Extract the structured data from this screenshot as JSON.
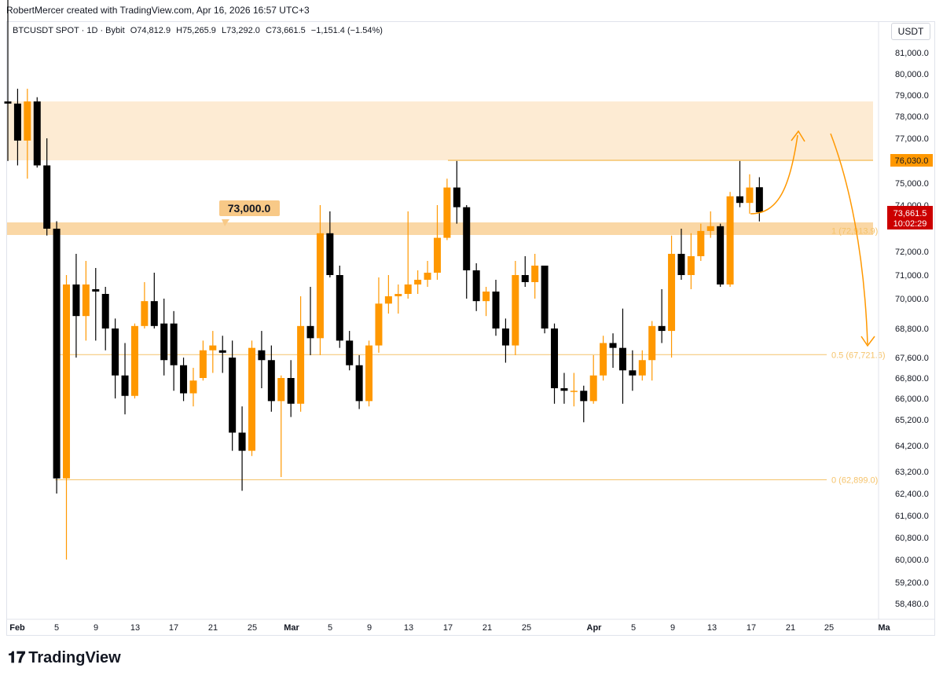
{
  "header": {
    "credit": "RobertMercer created with TradingView.com, Apr 16, 2026 16:57 UTC+3"
  },
  "symbol_line": {
    "symbol": "BTCUSDT SPOT · 1D · Bybit",
    "open": "O74,812.9",
    "high": "H75,265.9",
    "low": "L73,292.0",
    "close": "C73,661.5",
    "change": "−1,151.4 (−1.54%)"
  },
  "price_scale_label": "USDT",
  "colors": {
    "up": "#ff9800",
    "down": "#000000",
    "zone": "#fdebd3",
    "level": "#f8c987",
    "fib": "#f5c36b",
    "current_price_bg": "#cc0000",
    "resistance_tag_bg": "#ff9800"
  },
  "brand": {
    "text": "TradingView",
    "logo_icon": "tradingview-logo-icon"
  },
  "annotations": {
    "level_tag": "73,000.0",
    "resistance_tag": "76,030.0",
    "current_price": "73,661.5",
    "countdown": "10:02:29",
    "fib_1": "1 (72,913.9)",
    "fib_05": "0.5 (67,721.6)",
    "fib_0": "0 (62,899.0)"
  },
  "chart_data": {
    "type": "candlestick",
    "y_axis_ticks": [
      "81,000.0",
      "80,000.0",
      "79,000.0",
      "78,000.0",
      "77,000.0",
      "75,000.0",
      "74,000.0",
      "72,000.0",
      "71,000.0",
      "70,000.0",
      "68,800.0",
      "67,600.0",
      "66,800.0",
      "66,000.0",
      "65,200.0",
      "64,200.0",
      "63,200.0",
      "62,400.0",
      "61,600.0",
      "60,800.0",
      "60,000.0",
      "59,200.0",
      "58,480.0"
    ],
    "x_axis_ticks": [
      "Feb",
      "5",
      "9",
      "13",
      "17",
      "21",
      "25",
      "Mar",
      "5",
      "9",
      "13",
      "17",
      "21",
      "25",
      "Apr",
      "5",
      "9",
      "13",
      "17",
      "21",
      "25",
      "Ma"
    ],
    "resistance_zone": [
      76030,
      78700
    ],
    "support_level": 73000,
    "resistance_level": 76030,
    "fib_levels": [
      {
        "ratio": 1,
        "price": 72913.9
      },
      {
        "ratio": 0.5,
        "price": 67721.6
      },
      {
        "ratio": 0,
        "price": 62899.0
      }
    ],
    "candles": [
      {
        "date": "Jan 31",
        "o": 78700,
        "h": 84000,
        "l": 76000,
        "c": 78600
      },
      {
        "date": "Feb 1",
        "o": 78600,
        "h": 79300,
        "l": 75800,
        "c": 76900
      },
      {
        "date": "Feb 2",
        "o": 76900,
        "h": 79300,
        "l": 75200,
        "c": 78700
      },
      {
        "date": "Feb 3",
        "o": 78700,
        "h": 78900,
        "l": 75700,
        "c": 75800
      },
      {
        "date": "Feb 4",
        "o": 75800,
        "h": 77000,
        "l": 72700,
        "c": 73000
      },
      {
        "date": "Feb 5",
        "o": 73000,
        "h": 73300,
        "l": 62400,
        "c": 62950
      },
      {
        "date": "Feb 6",
        "o": 62950,
        "h": 71000,
        "l": 60000,
        "c": 70600
      },
      {
        "date": "Feb 7",
        "o": 70600,
        "h": 71900,
        "l": 67600,
        "c": 69300
      },
      {
        "date": "Feb 8",
        "o": 69300,
        "h": 71600,
        "l": 68300,
        "c": 70600
      },
      {
        "date": "Feb 9",
        "o": 70400,
        "h": 71300,
        "l": 68300,
        "c": 70300
      },
      {
        "date": "Feb 10",
        "o": 70200,
        "h": 70500,
        "l": 67900,
        "c": 68800
      },
      {
        "date": "Feb 11",
        "o": 68800,
        "h": 69200,
        "l": 66000,
        "c": 66900
      },
      {
        "date": "Feb 12",
        "o": 66900,
        "h": 68200,
        "l": 65400,
        "c": 66100
      },
      {
        "date": "Feb 13",
        "o": 66100,
        "h": 69000,
        "l": 66000,
        "c": 68900
      },
      {
        "date": "Feb 14",
        "o": 68900,
        "h": 70700,
        "l": 68800,
        "c": 69900
      },
      {
        "date": "Feb 15",
        "o": 69900,
        "h": 71100,
        "l": 68800,
        "c": 68900
      },
      {
        "date": "Feb 16",
        "o": 69000,
        "h": 70000,
        "l": 66900,
        "c": 67500
      },
      {
        "date": "Feb 17",
        "o": 69000,
        "h": 69500,
        "l": 66300,
        "c": 67300
      },
      {
        "date": "Feb 18",
        "o": 67300,
        "h": 67600,
        "l": 65900,
        "c": 66200
      },
      {
        "date": "Feb 19",
        "o": 66200,
        "h": 67200,
        "l": 65700,
        "c": 66700
      },
      {
        "date": "Feb 20",
        "o": 66800,
        "h": 68300,
        "l": 66700,
        "c": 67900
      },
      {
        "date": "Feb 21",
        "o": 67900,
        "h": 68700,
        "l": 67000,
        "c": 68100
      },
      {
        "date": "Feb 22",
        "o": 67900,
        "h": 68500,
        "l": 67000,
        "c": 67800
      },
      {
        "date": "Feb 23",
        "o": 67600,
        "h": 68300,
        "l": 64000,
        "c": 64700
      },
      {
        "date": "Feb 24",
        "o": 64700,
        "h": 65700,
        "l": 62500,
        "c": 64000
      },
      {
        "date": "Feb 25",
        "o": 64000,
        "h": 68300,
        "l": 63800,
        "c": 68000
      },
      {
        "date": "Feb 26",
        "o": 67900,
        "h": 68700,
        "l": 66400,
        "c": 67500
      },
      {
        "date": "Feb 27",
        "o": 67500,
        "h": 68100,
        "l": 65500,
        "c": 65900
      },
      {
        "date": "Feb 28",
        "o": 65900,
        "h": 66900,
        "l": 63000,
        "c": 66800
      },
      {
        "date": "Mar 1",
        "o": 66800,
        "h": 67500,
        "l": 65300,
        "c": 65800
      },
      {
        "date": "Mar 2",
        "o": 65800,
        "h": 70100,
        "l": 65500,
        "c": 68900
      },
      {
        "date": "Mar 3",
        "o": 68900,
        "h": 70500,
        "l": 67700,
        "c": 68400
      },
      {
        "date": "Mar 4",
        "o": 68400,
        "h": 74000,
        "l": 67700,
        "c": 72800
      },
      {
        "date": "Mar 5",
        "o": 72800,
        "h": 73700,
        "l": 70900,
        "c": 71000
      },
      {
        "date": "Mar 6",
        "o": 71000,
        "h": 71400,
        "l": 68000,
        "c": 68300
      },
      {
        "date": "Mar 7",
        "o": 68300,
        "h": 68700,
        "l": 67100,
        "c": 67300
      },
      {
        "date": "Mar 8",
        "o": 67300,
        "h": 67700,
        "l": 65600,
        "c": 65900
      },
      {
        "date": "Mar 9",
        "o": 65900,
        "h": 68300,
        "l": 65700,
        "c": 68100
      },
      {
        "date": "Mar 10",
        "o": 68100,
        "h": 70900,
        "l": 67800,
        "c": 69800
      },
      {
        "date": "Mar 11",
        "o": 69800,
        "h": 71000,
        "l": 69400,
        "c": 70100
      },
      {
        "date": "Mar 12",
        "o": 70100,
        "h": 70600,
        "l": 69400,
        "c": 70200
      },
      {
        "date": "Mar 13",
        "o": 70200,
        "h": 73700,
        "l": 70000,
        "c": 70600
      },
      {
        "date": "Mar 14",
        "o": 70600,
        "h": 71200,
        "l": 70200,
        "c": 70800
      },
      {
        "date": "Mar 15",
        "o": 70800,
        "h": 71600,
        "l": 70500,
        "c": 71100
      },
      {
        "date": "Mar 16",
        "o": 71100,
        "h": 74000,
        "l": 70800,
        "c": 72600
      },
      {
        "date": "Mar 17",
        "o": 72600,
        "h": 75200,
        "l": 72500,
        "c": 74800
      },
      {
        "date": "Mar 18",
        "o": 74800,
        "h": 76000,
        "l": 73200,
        "c": 73900
      },
      {
        "date": "Mar 19",
        "o": 73900,
        "h": 74000,
        "l": 70000,
        "c": 71200
      },
      {
        "date": "Mar 20",
        "o": 71200,
        "h": 71500,
        "l": 69500,
        "c": 69900
      },
      {
        "date": "Mar 21",
        "o": 69900,
        "h": 70500,
        "l": 69300,
        "c": 70300
      },
      {
        "date": "Mar 22",
        "o": 70300,
        "h": 70800,
        "l": 68500,
        "c": 68800
      },
      {
        "date": "Mar 23",
        "o": 68800,
        "h": 69200,
        "l": 67400,
        "c": 68100
      },
      {
        "date": "Mar 24",
        "o": 68100,
        "h": 71600,
        "l": 67700,
        "c": 71000
      },
      {
        "date": "Mar 25",
        "o": 71000,
        "h": 71800,
        "l": 70500,
        "c": 70700
      },
      {
        "date": "Mar 26",
        "o": 70700,
        "h": 71900,
        "l": 70000,
        "c": 71400
      },
      {
        "date": "Mar 27",
        "o": 71400,
        "h": 71400,
        "l": 68600,
        "c": 68800
      },
      {
        "date": "Mar 28",
        "o": 68800,
        "h": 69000,
        "l": 65800,
        "c": 66400
      },
      {
        "date": "Mar 29",
        "o": 66400,
        "h": 67000,
        "l": 65800,
        "c": 66300
      },
      {
        "date": "Mar 30",
        "o": 66300,
        "h": 67000,
        "l": 65700,
        "c": 66300
      },
      {
        "date": "Mar 31",
        "o": 66300,
        "h": 66500,
        "l": 65100,
        "c": 65900
      },
      {
        "date": "Apr 1",
        "o": 65900,
        "h": 67700,
        "l": 65800,
        "c": 66900
      },
      {
        "date": "Apr 2",
        "o": 66900,
        "h": 68500,
        "l": 66700,
        "c": 68200
      },
      {
        "date": "Apr 3",
        "o": 68200,
        "h": 68600,
        "l": 67200,
        "c": 68000
      },
      {
        "date": "Apr 4",
        "o": 68000,
        "h": 69600,
        "l": 65800,
        "c": 67100
      },
      {
        "date": "Apr 5",
        "o": 67100,
        "h": 67900,
        "l": 66300,
        "c": 66900
      },
      {
        "date": "Apr 6",
        "o": 66900,
        "h": 67900,
        "l": 66700,
        "c": 67500
      },
      {
        "date": "Apr 7",
        "o": 67500,
        "h": 69100,
        "l": 66700,
        "c": 68900
      },
      {
        "date": "Apr 8",
        "o": 68900,
        "h": 70400,
        "l": 68200,
        "c": 68700
      },
      {
        "date": "Apr 9",
        "o": 68700,
        "h": 72700,
        "l": 67600,
        "c": 71900
      },
      {
        "date": "Apr 10",
        "o": 71900,
        "h": 73000,
        "l": 70800,
        "c": 71000
      },
      {
        "date": "Apr 11",
        "o": 71000,
        "h": 72800,
        "l": 70400,
        "c": 71800
      },
      {
        "date": "Apr 12",
        "o": 71800,
        "h": 73200,
        "l": 71600,
        "c": 72900
      },
      {
        "date": "Apr 13",
        "o": 72900,
        "h": 73700,
        "l": 72600,
        "c": 73100
      },
      {
        "date": "Apr 14",
        "o": 73100,
        "h": 73200,
        "l": 70500,
        "c": 70600
      },
      {
        "date": "Apr 15",
        "o": 70600,
        "h": 74600,
        "l": 70500,
        "c": 74400
      },
      {
        "date": "Apr 16",
        "o": 74400,
        "h": 76000,
        "l": 73900,
        "c": 74100
      },
      {
        "date": "Apr 17",
        "o": 74100,
        "h": 75400,
        "l": 73600,
        "c": 74800
      },
      {
        "date": "Apr 18",
        "o": 74812.9,
        "h": 75265.9,
        "l": 73292.0,
        "c": 73661.5
      }
    ]
  }
}
